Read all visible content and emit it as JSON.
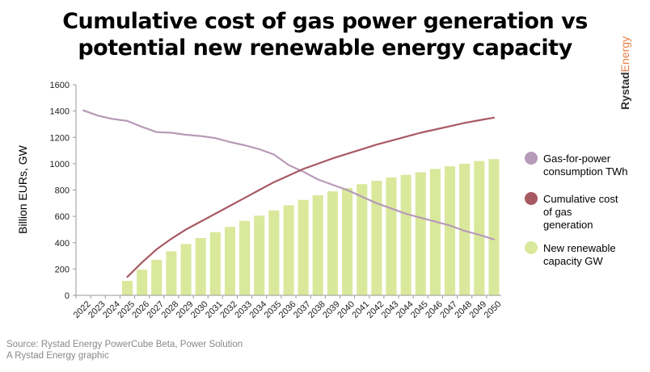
{
  "title_line1": "Cumulative cost of gas power generation vs",
  "title_line2": "potential new renewable energy capacity",
  "brand": {
    "part1": "Rystad",
    "part2": "Energy",
    "color1": "#333333",
    "color2": "#e8824a"
  },
  "source_line1": "Source: Rystad Energy PowerCube Beta, Power Solution",
  "source_line2": "A Rystad Energy graphic",
  "chart_data": {
    "type": "bar+line",
    "ylabel": "Billion EURs, GW",
    "ylim": [
      0,
      1600
    ],
    "yticks": [
      0,
      200,
      400,
      600,
      800,
      1000,
      1200,
      1400,
      1600
    ],
    "categories": [
      "2022",
      "2023",
      "2024",
      "2025",
      "2026",
      "2027",
      "2028",
      "2029",
      "2030",
      "2031",
      "2032",
      "2033",
      "2034",
      "2035",
      "2036",
      "2037",
      "2038",
      "2039",
      "2040",
      "2041",
      "2042",
      "2043",
      "2044",
      "2045",
      "2046",
      "2047",
      "2048",
      "2049",
      "2050"
    ],
    "series": [
      {
        "name": "Gas-for-power consumption TWh",
        "type": "line",
        "color": "#b79ab8",
        "values": [
          1405,
          1365,
          1340,
          1325,
          1280,
          1240,
          1235,
          1220,
          1210,
          1195,
          1165,
          1140,
          1110,
          1070,
          990,
          940,
          880,
          840,
          800,
          750,
          700,
          660,
          620,
          590,
          560,
          530,
          490,
          460,
          425
        ]
      },
      {
        "name": "Cumulative cost of gas generation",
        "type": "line",
        "color": "#a85a63",
        "values": [
          null,
          null,
          null,
          140,
          250,
          350,
          430,
          500,
          560,
          620,
          680,
          740,
          800,
          860,
          910,
          960,
          1000,
          1040,
          1075,
          1110,
          1145,
          1175,
          1205,
          1235,
          1260,
          1285,
          1310,
          1330,
          1350
        ]
      },
      {
        "name": "New renewable capacity GW",
        "type": "bar",
        "color": "#d9e89b",
        "values": [
          0,
          0,
          0,
          110,
          195,
          270,
          335,
          390,
          435,
          480,
          520,
          565,
          605,
          645,
          685,
          725,
          760,
          790,
          815,
          845,
          870,
          895,
          915,
          935,
          960,
          980,
          1000,
          1020,
          1035
        ]
      }
    ],
    "legend": [
      {
        "line1": "Gas-for-power",
        "line2": "consumption TWh",
        "line3": ""
      },
      {
        "line1": "Cumulative cost",
        "line2": "of gas",
        "line3": "generation"
      },
      {
        "line1": "New renewable",
        "line2": "capacity GW",
        "line3": ""
      }
    ],
    "legend_position": "right",
    "grid": false
  }
}
